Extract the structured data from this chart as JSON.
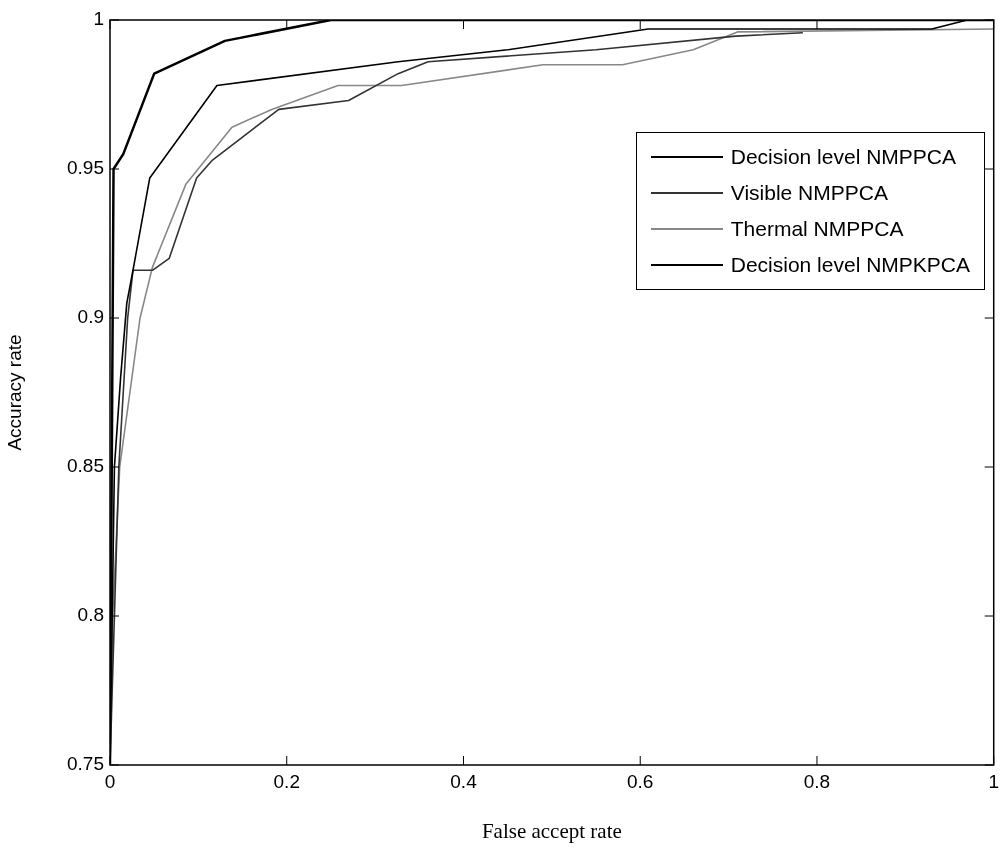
{
  "chart_data": {
    "type": "line",
    "xlabel": "False accept rate",
    "ylabel": "Accuracy rate",
    "xlim": [
      0,
      1
    ],
    "ylim": [
      0.75,
      1
    ],
    "xticks": [
      0,
      0.2,
      0.4,
      0.6,
      0.8,
      1
    ],
    "yticks": [
      0.75,
      0.8,
      0.85,
      0.9,
      0.95,
      1
    ],
    "grid": false,
    "legend": "top right",
    "marker": "none",
    "line_style": "solid",
    "series": [
      {
        "name": "Decision level NMPPCA",
        "color": "#000000",
        "x": [
          0,
          0.005,
          0.012,
          0.019,
          0.026,
          0.045,
          0.121,
          0.326,
          0.45,
          0.609,
          0.93,
          0.97,
          1
        ],
        "values": [
          0.75,
          0.85,
          0.88,
          0.905,
          0.916,
          0.947,
          0.978,
          0.986,
          0.99,
          0.997,
          0.997,
          1,
          1
        ]
      },
      {
        "name": "Visible NMPPCA",
        "color": "#333333",
        "x": [
          0,
          0.01,
          0.02,
          0.026,
          0.048,
          0.067,
          0.098,
          0.116,
          0.191,
          0.27,
          0.326,
          0.36,
          0.55,
          0.708,
          0.784
        ],
        "values": [
          0.75,
          0.85,
          0.9,
          0.916,
          0.916,
          0.92,
          0.947,
          0.953,
          0.97,
          0.973,
          0.982,
          0.986,
          0.99,
          0.9946,
          0.9957
        ]
      },
      {
        "name": "Thermal NMPPCA",
        "color": "#888888",
        "x": [
          0,
          0.003,
          0.011,
          0.034,
          0.048,
          0.086,
          0.138,
          0.183,
          0.258,
          0.33,
          0.49,
          0.58,
          0.66,
          0.71,
          1
        ],
        "values": [
          0.75,
          0.8,
          0.85,
          0.9,
          0.917,
          0.945,
          0.964,
          0.97,
          0.978,
          0.978,
          0.985,
          0.985,
          0.99,
          0.996,
          0.997
        ]
      },
      {
        "name": "Decision level NMPKPCA",
        "color": "#000000",
        "x": [
          0,
          0.003,
          0.004,
          0.015,
          0.05,
          0.13,
          0.25,
          1
        ],
        "values": [
          0.75,
          0.9,
          0.95,
          0.955,
          0.982,
          0.993,
          1,
          1
        ]
      }
    ]
  }
}
